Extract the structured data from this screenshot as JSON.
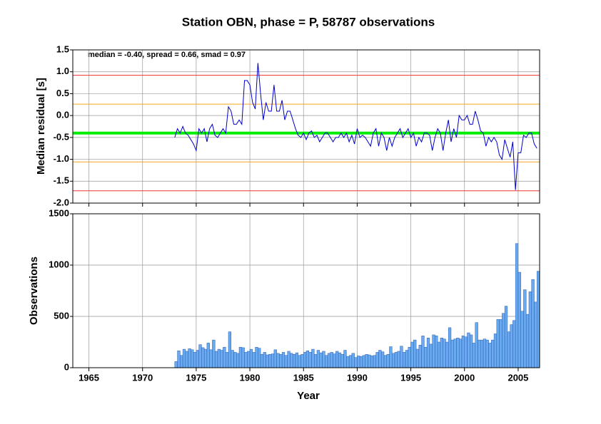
{
  "chart_data": [
    {
      "type": "line",
      "title": "Station OBN, phase = P, 58787 observations",
      "annotation": "median = -0.40, spread = 0.66, smad = 0.97",
      "ylabel": "Median residual [s]",
      "median": -0.4,
      "spread": 0.66,
      "xlim": [
        1963.5,
        2007
      ],
      "xticks": [
        1965,
        1970,
        1975,
        1980,
        1985,
        1990,
        1995,
        2000,
        2005
      ],
      "ylim": [
        -2,
        1.5
      ],
      "yticks": [
        {
          "value": -2,
          "label": "-2.0"
        },
        -1.5,
        {
          "value": -1,
          "label": "-1.0"
        },
        -0.5,
        {
          "value": 0,
          "label": "0.0"
        },
        0.5,
        {
          "value": 1,
          "label": "1.0"
        },
        1.5
      ],
      "grid": true,
      "x": [
        1973,
        1973.25,
        1973.5,
        1973.75,
        1974,
        1974.25,
        1974.5,
        1974.75,
        1975,
        1975.25,
        1975.5,
        1975.75,
        1976,
        1976.25,
        1976.5,
        1976.75,
        1977,
        1977.25,
        1977.5,
        1977.75,
        1978,
        1978.25,
        1978.5,
        1978.75,
        1979,
        1979.25,
        1979.5,
        1979.75,
        1980,
        1980.25,
        1980.5,
        1980.75,
        1981,
        1981.25,
        1981.5,
        1981.75,
        1982,
        1982.25,
        1982.5,
        1982.75,
        1983,
        1983.25,
        1983.5,
        1983.75,
        1984,
        1984.25,
        1984.5,
        1984.75,
        1985,
        1985.25,
        1985.5,
        1985.75,
        1986,
        1986.25,
        1986.5,
        1986.75,
        1987,
        1987.25,
        1987.5,
        1987.75,
        1988,
        1988.25,
        1988.5,
        1988.75,
        1989,
        1989.25,
        1989.5,
        1989.75,
        1990,
        1990.25,
        1990.5,
        1990.75,
        1991,
        1991.25,
        1991.5,
        1991.75,
        1992,
        1992.25,
        1992.5,
        1992.75,
        1993,
        1993.25,
        1993.5,
        1993.75,
        1994,
        1994.25,
        1994.5,
        1994.75,
        1995,
        1995.25,
        1995.5,
        1995.75,
        1996,
        1996.25,
        1996.5,
        1996.75,
        1997,
        1997.25,
        1997.5,
        1997.75,
        1998,
        1998.25,
        1998.5,
        1998.75,
        1999,
        1999.25,
        1999.5,
        1999.75,
        2000,
        2000.25,
        2000.5,
        2000.75,
        2001,
        2001.25,
        2001.5,
        2001.75,
        2002,
        2002.25,
        2002.5,
        2002.75,
        2003,
        2003.25,
        2003.5,
        2003.75,
        2004,
        2004.25,
        2004.5,
        2004.75,
        2005,
        2005.25,
        2005.5,
        2005.75,
        2006,
        2006.25,
        2006.5,
        2006.75
      ],
      "series": [
        {
          "name": "Median residual",
          "color": "#0000cc",
          "values": [
            -0.5,
            -0.3,
            -0.4,
            -0.25,
            -0.4,
            -0.45,
            -0.55,
            -0.65,
            -0.8,
            -0.3,
            -0.4,
            -0.3,
            -0.6,
            -0.3,
            -0.2,
            -0.45,
            -0.5,
            -0.4,
            -0.3,
            -0.4,
            0.2,
            0.1,
            -0.2,
            -0.2,
            -0.1,
            -0.2,
            0.8,
            0.8,
            0.7,
            0.3,
            0.15,
            1.2,
            0.5,
            -0.1,
            0.3,
            0.1,
            0.1,
            0.7,
            0.1,
            0.1,
            0.35,
            -0.1,
            0.1,
            0.1,
            -0.1,
            -0.3,
            -0.45,
            -0.5,
            -0.4,
            -0.55,
            -0.4,
            -0.35,
            -0.5,
            -0.45,
            -0.6,
            -0.5,
            -0.4,
            -0.4,
            -0.5,
            -0.6,
            -0.5,
            -0.5,
            -0.4,
            -0.5,
            -0.4,
            -0.6,
            -0.45,
            -0.65,
            -0.3,
            -0.5,
            -0.45,
            -0.5,
            -0.6,
            -0.7,
            -0.4,
            -0.3,
            -0.7,
            -0.4,
            -0.5,
            -0.8,
            -0.5,
            -0.7,
            -0.5,
            -0.4,
            -0.3,
            -0.5,
            -0.4,
            -0.3,
            -0.5,
            -0.4,
            -0.7,
            -0.5,
            -0.6,
            -0.4,
            -0.4,
            -0.45,
            -0.8,
            -0.5,
            -0.3,
            -0.4,
            -0.8,
            -0.4,
            -0.1,
            -0.6,
            -0.3,
            -0.5,
            0.0,
            -0.1,
            -0.1,
            0.0,
            -0.2,
            -0.2,
            0.1,
            -0.1,
            -0.35,
            -0.4,
            -0.7,
            -0.5,
            -0.6,
            -0.5,
            -0.6,
            -0.9,
            -1.0,
            -0.55,
            -0.75,
            -0.95,
            -0.6,
            -1.7,
            -0.85,
            -0.85,
            -0.45,
            -0.5,
            -0.4,
            -0.4,
            -0.65,
            -0.75
          ]
        }
      ]
    },
    {
      "type": "bar",
      "xlabel": "Year",
      "ylabel": "Observations",
      "xlim": [
        1963.5,
        2007
      ],
      "xticks": [
        1965,
        1970,
        1975,
        1980,
        1985,
        1990,
        1995,
        2000,
        2005
      ],
      "ylim": [
        0,
        1500
      ],
      "yticks": [
        0,
        500,
        1000,
        1500
      ],
      "grid": true,
      "x": [
        1973,
        1973.25,
        1973.5,
        1973.75,
        1974,
        1974.25,
        1974.5,
        1974.75,
        1975,
        1975.25,
        1975.5,
        1975.75,
        1976,
        1976.25,
        1976.5,
        1976.75,
        1977,
        1977.25,
        1977.5,
        1977.75,
        1978,
        1978.25,
        1978.5,
        1978.75,
        1979,
        1979.25,
        1979.5,
        1979.75,
        1980,
        1980.25,
        1980.5,
        1980.75,
        1981,
        1981.25,
        1981.5,
        1981.75,
        1982,
        1982.25,
        1982.5,
        1982.75,
        1983,
        1983.25,
        1983.5,
        1983.75,
        1984,
        1984.25,
        1984.5,
        1984.75,
        1985,
        1985.25,
        1985.5,
        1985.75,
        1986,
        1986.25,
        1986.5,
        1986.75,
        1987,
        1987.25,
        1987.5,
        1987.75,
        1988,
        1988.25,
        1988.5,
        1988.75,
        1989,
        1989.25,
        1989.5,
        1989.75,
        1990,
        1990.25,
        1990.5,
        1990.75,
        1991,
        1991.25,
        1991.5,
        1991.75,
        1992,
        1992.25,
        1992.5,
        1992.75,
        1993,
        1993.25,
        1993.5,
        1993.75,
        1994,
        1994.25,
        1994.5,
        1994.75,
        1995,
        1995.25,
        1995.5,
        1995.75,
        1996,
        1996.25,
        1996.5,
        1996.75,
        1997,
        1997.25,
        1997.5,
        1997.75,
        1998,
        1998.25,
        1998.5,
        1998.75,
        1999,
        1999.25,
        1999.5,
        1999.75,
        2000,
        2000.25,
        2000.5,
        2000.75,
        2001,
        2001.25,
        2001.5,
        2001.75,
        2002,
        2002.25,
        2002.5,
        2002.75,
        2003,
        2003.25,
        2003.5,
        2003.75,
        2004,
        2004.25,
        2004.5,
        2004.75,
        2005,
        2005.25,
        2005.5,
        2005.75,
        2006,
        2006.25,
        2006.5,
        2006.75
      ],
      "series": [
        {
          "name": "Observations",
          "color": "#6aaaf0",
          "values": [
            60,
            165,
            120,
            180,
            160,
            185,
            175,
            150,
            170,
            225,
            195,
            180,
            240,
            175,
            270,
            160,
            180,
            170,
            200,
            150,
            350,
            170,
            150,
            140,
            200,
            195,
            150,
            160,
            180,
            150,
            200,
            190,
            130,
            150,
            125,
            130,
            135,
            175,
            140,
            130,
            150,
            120,
            160,
            140,
            130,
            145,
            120,
            130,
            150,
            165,
            150,
            180,
            130,
            170,
            145,
            160,
            120,
            140,
            150,
            135,
            160,
            145,
            130,
            170,
            110,
            120,
            140,
            100,
            115,
            110,
            120,
            130,
            125,
            115,
            120,
            150,
            170,
            155,
            120,
            130,
            205,
            140,
            150,
            160,
            210,
            150,
            170,
            200,
            250,
            270,
            180,
            220,
            310,
            200,
            290,
            230,
            320,
            310,
            250,
            290,
            280,
            250,
            390,
            270,
            280,
            290,
            280,
            310,
            300,
            340,
            320,
            240,
            440,
            270,
            270,
            280,
            270,
            240,
            270,
            330,
            470,
            470,
            530,
            600,
            350,
            420,
            460,
            1210,
            930,
            550,
            760,
            520,
            740,
            860,
            640,
            940
          ]
        }
      ]
    }
  ]
}
